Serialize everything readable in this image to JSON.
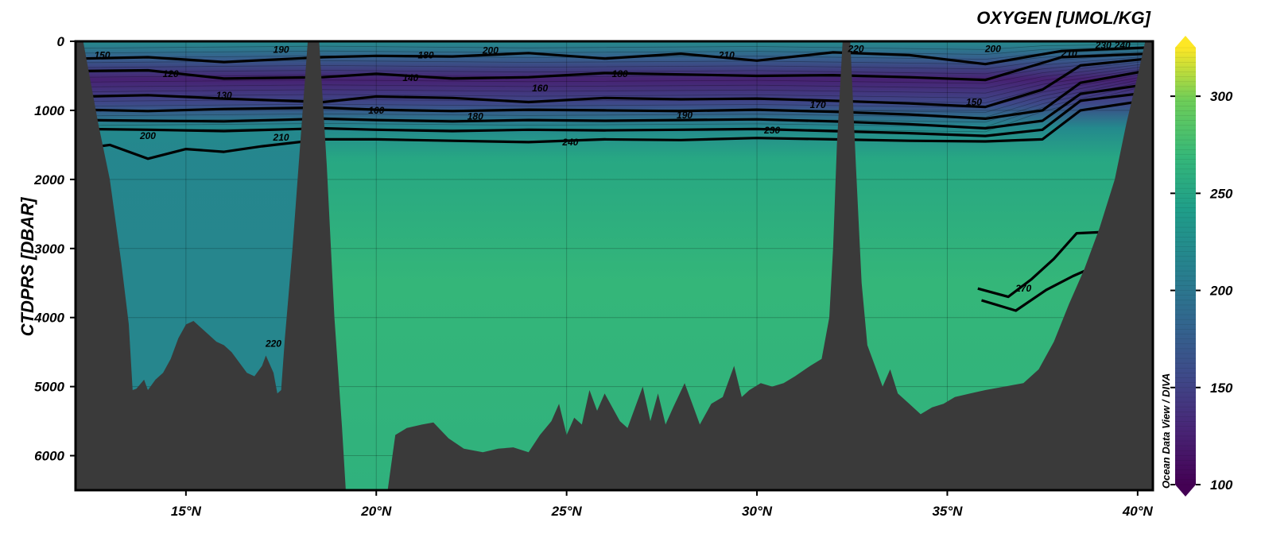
{
  "chart_data": {
    "type": "heatmap",
    "title": "OXYGEN [UMOL/KG]",
    "ylabel": "CTDPRS [DBAR]",
    "xlabel": "",
    "credit": "Ocean Data View / DIVA",
    "x_range_degN": [
      12.1,
      40.4
    ],
    "y_range_dbar": [
      0,
      6500
    ],
    "y_reversed": true,
    "x_ticks": [
      15,
      20,
      25,
      30,
      35,
      40
    ],
    "x_tick_labels": [
      "15°N",
      "20°N",
      "25°N",
      "30°N",
      "35°N",
      "40°N"
    ],
    "y_ticks": [
      0,
      1000,
      2000,
      3000,
      4000,
      5000,
      6000
    ],
    "y_tick_labels": [
      "0",
      "1000",
      "2000",
      "3000",
      "4000",
      "5000",
      "6000"
    ],
    "colorbar": {
      "range": [
        100,
        325
      ],
      "ticks": [
        100,
        150,
        200,
        250,
        300
      ],
      "tick_labels": [
        "100",
        "150",
        "200",
        "250",
        "300"
      ],
      "colormap": "viridis",
      "extend": "both"
    },
    "grid": true,
    "seafloor_color": "#3a3a3a",
    "water_column": [
      {
        "depth": 0,
        "oxygen": 222
      },
      {
        "depth": 250,
        "oxygen": 175
      },
      {
        "depth": 550,
        "oxygen": 125
      },
      {
        "depth": 900,
        "oxygen": 155
      },
      {
        "depth": 1250,
        "oxygen": 220
      },
      {
        "depth": 1700,
        "oxygen": 252
      },
      {
        "depth": 3500,
        "oxygen": 268
      },
      {
        "depth": 6500,
        "oxygen": 262
      }
    ],
    "deep_basin_south": {
      "lat_range": [
        12.1,
        18.4
      ],
      "oxygen": 215
    },
    "contour_lines": [
      {
        "label": "150",
        "lat": 12.8,
        "depth": 200
      },
      {
        "label": "190",
        "lat": 17.5,
        "depth": 120
      },
      {
        "label": "180",
        "lat": 21.3,
        "depth": 200
      },
      {
        "label": "200",
        "lat": 23.0,
        "depth": 130
      },
      {
        "label": "210",
        "lat": 29.2,
        "depth": 200
      },
      {
        "label": "220",
        "lat": 32.6,
        "depth": 110
      },
      {
        "label": "200",
        "lat": 36.2,
        "depth": 110
      },
      {
        "label": "210",
        "lat": 38.2,
        "depth": 180
      },
      {
        "label": "230",
        "lat": 39.1,
        "depth": 60
      },
      {
        "label": "240",
        "lat": 39.6,
        "depth": 60
      },
      {
        "label": "120",
        "lat": 14.6,
        "depth": 470
      },
      {
        "label": "140",
        "lat": 20.9,
        "depth": 530
      },
      {
        "label": "180",
        "lat": 26.4,
        "depth": 470
      },
      {
        "label": "130",
        "lat": 16.0,
        "depth": 780
      },
      {
        "label": "160",
        "lat": 24.3,
        "depth": 680
      },
      {
        "label": "160",
        "lat": 20.0,
        "depth": 1000
      },
      {
        "label": "180",
        "lat": 22.6,
        "depth": 1090
      },
      {
        "label": "190",
        "lat": 28.1,
        "depth": 1070
      },
      {
        "label": "170",
        "lat": 31.6,
        "depth": 920
      },
      {
        "label": "150",
        "lat": 35.7,
        "depth": 880
      },
      {
        "label": "200",
        "lat": 14.0,
        "depth": 1370
      },
      {
        "label": "210",
        "lat": 17.5,
        "depth": 1390
      },
      {
        "label": "230",
        "lat": 30.4,
        "depth": 1290
      },
      {
        "label": "240",
        "lat": 25.1,
        "depth": 1460
      },
      {
        "label": "270",
        "lat": 37.0,
        "depth": 3580
      },
      {
        "label": "220",
        "lat": 17.3,
        "depth": 4380
      }
    ],
    "bathymetry_depth_dbar": [
      [
        12.1,
        0
      ],
      [
        12.3,
        0
      ],
      [
        12.5,
        600
      ],
      [
        12.7,
        1200
      ],
      [
        13.0,
        2000
      ],
      [
        13.3,
        3200
      ],
      [
        13.5,
        4100
      ],
      [
        13.6,
        5050
      ],
      [
        13.7,
        5030
      ],
      [
        13.9,
        4900
      ],
      [
        14.0,
        5050
      ],
      [
        14.2,
        4900
      ],
      [
        14.4,
        4800
      ],
      [
        14.6,
        4600
      ],
      [
        14.8,
        4300
      ],
      [
        15.0,
        4100
      ],
      [
        15.2,
        4050
      ],
      [
        15.4,
        4150
      ],
      [
        15.6,
        4250
      ],
      [
        15.8,
        4350
      ],
      [
        16.0,
        4400
      ],
      [
        16.2,
        4500
      ],
      [
        16.4,
        4650
      ],
      [
        16.6,
        4800
      ],
      [
        16.8,
        4850
      ],
      [
        17.0,
        4700
      ],
      [
        17.1,
        4550
      ],
      [
        17.3,
        4800
      ],
      [
        17.4,
        5100
      ],
      [
        17.5,
        5050
      ],
      [
        17.6,
        4300
      ],
      [
        17.8,
        3000
      ],
      [
        18.0,
        1500
      ],
      [
        18.2,
        0
      ],
      [
        18.5,
        0
      ],
      [
        18.7,
        1800
      ],
      [
        18.9,
        4000
      ],
      [
        19.1,
        5600
      ],
      [
        19.2,
        6500
      ],
      [
        20.3,
        6500
      ],
      [
        20.5,
        5700
      ],
      [
        20.8,
        5600
      ],
      [
        21.2,
        5550
      ],
      [
        21.5,
        5520
      ],
      [
        21.9,
        5750
      ],
      [
        22.3,
        5900
      ],
      [
        22.8,
        5950
      ],
      [
        23.2,
        5900
      ],
      [
        23.6,
        5880
      ],
      [
        24.0,
        5950
      ],
      [
        24.3,
        5700
      ],
      [
        24.6,
        5500
      ],
      [
        24.8,
        5250
      ],
      [
        25.0,
        5700
      ],
      [
        25.2,
        5450
      ],
      [
        25.4,
        5550
      ],
      [
        25.6,
        5050
      ],
      [
        25.8,
        5350
      ],
      [
        26.0,
        5100
      ],
      [
        26.2,
        5300
      ],
      [
        26.4,
        5500
      ],
      [
        26.6,
        5600
      ],
      [
        26.8,
        5300
      ],
      [
        27.0,
        5000
      ],
      [
        27.2,
        5500
      ],
      [
        27.4,
        5100
      ],
      [
        27.6,
        5550
      ],
      [
        27.8,
        5300
      ],
      [
        28.1,
        4950
      ],
      [
        28.3,
        5250
      ],
      [
        28.5,
        5550
      ],
      [
        28.8,
        5250
      ],
      [
        29.1,
        5150
      ],
      [
        29.4,
        4700
      ],
      [
        29.6,
        5150
      ],
      [
        29.8,
        5050
      ],
      [
        30.1,
        4950
      ],
      [
        30.4,
        5000
      ],
      [
        30.7,
        4950
      ],
      [
        31.0,
        4850
      ],
      [
        31.4,
        4700
      ],
      [
        31.7,
        4600
      ],
      [
        31.9,
        4000
      ],
      [
        32.0,
        3000
      ],
      [
        32.1,
        1500
      ],
      [
        32.25,
        0
      ],
      [
        32.45,
        0
      ],
      [
        32.6,
        1800
      ],
      [
        32.75,
        3500
      ],
      [
        32.9,
        4400
      ],
      [
        33.1,
        4700
      ],
      [
        33.3,
        5000
      ],
      [
        33.5,
        4750
      ],
      [
        33.7,
        5100
      ],
      [
        34.0,
        5250
      ],
      [
        34.3,
        5400
      ],
      [
        34.6,
        5300
      ],
      [
        34.9,
        5250
      ],
      [
        35.2,
        5150
      ],
      [
        35.6,
        5100
      ],
      [
        36.0,
        5050
      ],
      [
        36.5,
        5000
      ],
      [
        37.0,
        4950
      ],
      [
        37.4,
        4750
      ],
      [
        37.8,
        4350
      ],
      [
        38.2,
        3800
      ],
      [
        38.6,
        3300
      ],
      [
        39.0,
        2700
      ],
      [
        39.4,
        2000
      ],
      [
        39.7,
        1200
      ],
      [
        40.0,
        500
      ],
      [
        40.2,
        0
      ],
      [
        40.4,
        0
      ]
    ]
  }
}
